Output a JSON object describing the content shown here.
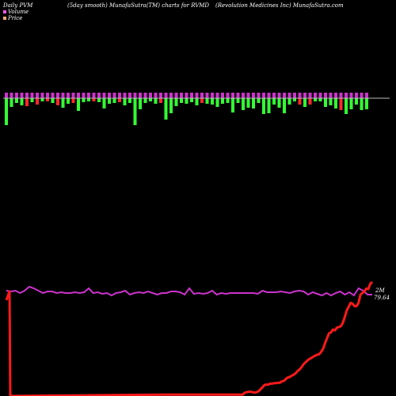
{
  "header": {
    "left": "Daily PVM",
    "middle": "(5day smooth) MunafaSutra(TM) charts for RVMD",
    "right": "(Revolution  Medicines Inc) MunafaSutra.com"
  },
  "legend": {
    "volume_label": "Volume",
    "price_label": "Price"
  },
  "colors": {
    "up_bar": "#33ff33",
    "down_bar": "#ff2a2a",
    "volume_cap": "#cc33cc",
    "volume_line": "#cc33cc",
    "price_line": "#ff1a1a",
    "baseline": "#bbbbbb"
  },
  "chart_data": {
    "type": "bar",
    "title": "",
    "series": [
      {
        "name": "Volume",
        "bars": [
          {
            "v": 34,
            "d": "up"
          },
          {
            "v": 11,
            "d": "up"
          },
          {
            "v": 6,
            "d": "up"
          },
          {
            "v": 9,
            "d": "up"
          },
          {
            "v": 10,
            "d": "down"
          },
          {
            "v": 5,
            "d": "up"
          },
          {
            "v": 8,
            "d": "down"
          },
          {
            "v": 4,
            "d": "up"
          },
          {
            "v": 4,
            "d": "down"
          },
          {
            "v": 6,
            "d": "up"
          },
          {
            "v": 9,
            "d": "down"
          },
          {
            "v": 12,
            "d": "up"
          },
          {
            "v": 7,
            "d": "up"
          },
          {
            "v": 6,
            "d": "down"
          },
          {
            "v": 16,
            "d": "up"
          },
          {
            "v": 5,
            "d": "up"
          },
          {
            "v": 4,
            "d": "up"
          },
          {
            "v": 4,
            "d": "down"
          },
          {
            "v": 5,
            "d": "up"
          },
          {
            "v": 13,
            "d": "up"
          },
          {
            "v": 7,
            "d": "up"
          },
          {
            "v": 6,
            "d": "up"
          },
          {
            "v": 5,
            "d": "down"
          },
          {
            "v": 9,
            "d": "up"
          },
          {
            "v": 6,
            "d": "up"
          },
          {
            "v": 34,
            "d": "up"
          },
          {
            "v": 14,
            "d": "up"
          },
          {
            "v": 6,
            "d": "up"
          },
          {
            "v": 4,
            "d": "up"
          },
          {
            "v": 7,
            "d": "up"
          },
          {
            "v": 6,
            "d": "down"
          },
          {
            "v": 27,
            "d": "up"
          },
          {
            "v": 19,
            "d": "up"
          },
          {
            "v": 10,
            "d": "up"
          },
          {
            "v": 6,
            "d": "up"
          },
          {
            "v": 7,
            "d": "up"
          },
          {
            "v": 5,
            "d": "up"
          },
          {
            "v": 9,
            "d": "up"
          },
          {
            "v": 6,
            "d": "down"
          },
          {
            "v": 7,
            "d": "up"
          },
          {
            "v": 8,
            "d": "up"
          },
          {
            "v": 11,
            "d": "up"
          },
          {
            "v": 7,
            "d": "up"
          },
          {
            "v": 6,
            "d": "up"
          },
          {
            "v": 18,
            "d": "up"
          },
          {
            "v": 6,
            "d": "up"
          },
          {
            "v": 15,
            "d": "up"
          },
          {
            "v": 12,
            "d": "up"
          },
          {
            "v": 13,
            "d": "up"
          },
          {
            "v": 6,
            "d": "up"
          },
          {
            "v": 20,
            "d": "up"
          },
          {
            "v": 19,
            "d": "up"
          },
          {
            "v": 8,
            "d": "up"
          },
          {
            "v": 12,
            "d": "up"
          },
          {
            "v": 19,
            "d": "up"
          },
          {
            "v": 8,
            "d": "up"
          },
          {
            "v": 4,
            "d": "up"
          },
          {
            "v": 8,
            "d": "down"
          },
          {
            "v": 11,
            "d": "up"
          },
          {
            "v": 8,
            "d": "down"
          },
          {
            "v": 4,
            "d": "up"
          },
          {
            "v": 4,
            "d": "up"
          },
          {
            "v": 11,
            "d": "up"
          },
          {
            "v": 9,
            "d": "up"
          },
          {
            "v": 13,
            "d": "up"
          },
          {
            "v": 15,
            "d": "down"
          },
          {
            "v": 20,
            "d": "up"
          },
          {
            "v": 14,
            "d": "up"
          },
          {
            "v": 8,
            "d": "up"
          },
          {
            "v": 15,
            "d": "up"
          },
          {
            "v": 14,
            "d": "up"
          }
        ]
      },
      {
        "name": "Volume line",
        "values": [
          20,
          19,
          20,
          17,
          20,
          25,
          23,
          20,
          17,
          19,
          19,
          17,
          18,
          17,
          17,
          18,
          17,
          18,
          23,
          17,
          18,
          16,
          17,
          14,
          17,
          18,
          20,
          15,
          17,
          18,
          17,
          19,
          17,
          15,
          17,
          17,
          19,
          19,
          18,
          15,
          23,
          16,
          17,
          16,
          17,
          20,
          15,
          17,
          16,
          17,
          17,
          17,
          17,
          17,
          17,
          16,
          20,
          18,
          18,
          18,
          19,
          18,
          17,
          19,
          20,
          19,
          15,
          18,
          16,
          14,
          17,
          14,
          17,
          19,
          15,
          18,
          14,
          23,
          20,
          15,
          15
        ]
      },
      {
        "name": "Price",
        "values": [
          3,
          3,
          3,
          3,
          3,
          3,
          3,
          3,
          3,
          3,
          3,
          3,
          3,
          3,
          3,
          3,
          3,
          3,
          3,
          3,
          3,
          3,
          3,
          3,
          3,
          3,
          3,
          3,
          3,
          3,
          3,
          3,
          3,
          3,
          3,
          3,
          3,
          3,
          3,
          3,
          7,
          8,
          9,
          9,
          8,
          7,
          8,
          10,
          14,
          18,
          23,
          24,
          24,
          26,
          26,
          27,
          27,
          28,
          28,
          31,
          32,
          36,
          39,
          40,
          43,
          45,
          48,
          53,
          56,
          61,
          67,
          71,
          75,
          78,
          80,
          83,
          85,
          87,
          88,
          93,
          100,
          112,
          122,
          132,
          134,
          140,
          138,
          144,
          145,
          147,
          154,
          166,
          180,
          188,
          196,
          194,
          189,
          189,
          196,
          213,
          217,
          220,
          226,
          225,
          236,
          240
        ],
        "first_value": 242
      }
    ],
    "annotations": {
      "volume_last": "2M",
      "price_last": "79.64"
    }
  }
}
